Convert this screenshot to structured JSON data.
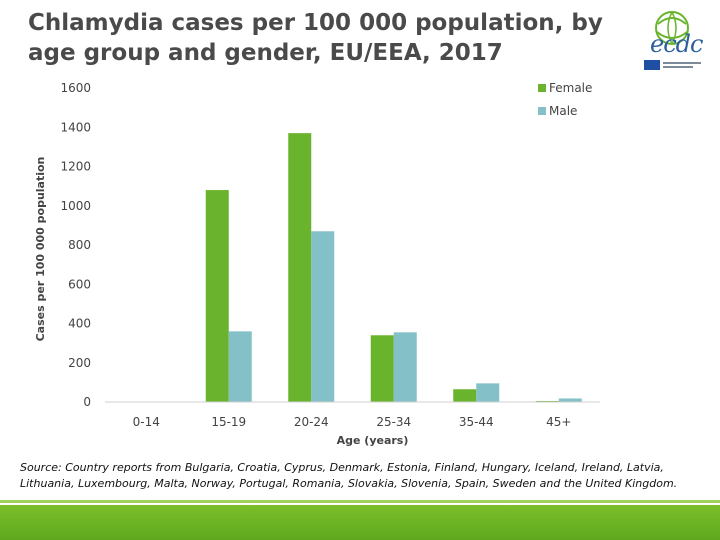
{
  "slide": {
    "title": "Chlamydia cases per 100 000 population, by age group and gender, EU/EEA, 2017",
    "logo_icon": "ecdc-logo-icon",
    "logo_text": "ecdc",
    "source": "Source: Country reports from Bulgaria, Croatia, Cyprus, Denmark, Estonia, Finland, Hungary, Iceland, Ireland, Latvia, Lithuania, Luxembourg, Malta, Norway, Portugal, Romania, Slovakia, Slovenia, Spain, Sweden and the United Kingdom."
  },
  "chart_data": {
    "type": "bar",
    "title": "",
    "xlabel": "Age (years)",
    "ylabel": "Cases per 100 000 population",
    "categories": [
      "0-14",
      "15-19",
      "20-24",
      "25-34",
      "35-44",
      "45+"
    ],
    "series": [
      {
        "name": "Female",
        "color": "#6ab42d",
        "values": [
          0,
          1080,
          1370,
          340,
          65,
          5
        ]
      },
      {
        "name": "Male",
        "color": "#84c0c7",
        "values": [
          0,
          360,
          870,
          355,
          95,
          18
        ]
      }
    ],
    "ylim": [
      0,
      1600
    ],
    "yticks": [
      "0",
      "200",
      "400",
      "600",
      "800",
      "1000",
      "1200",
      "1400",
      "1600"
    ],
    "ytick_values": [
      0,
      200,
      400,
      600,
      800,
      1000,
      1200,
      1400,
      1600
    ],
    "grid": false,
    "legend_position": "top-right"
  }
}
